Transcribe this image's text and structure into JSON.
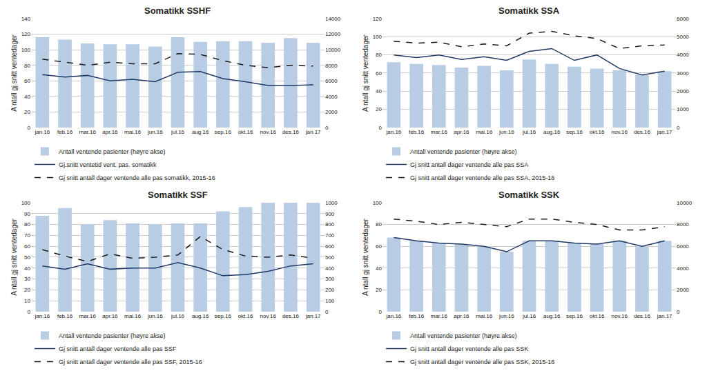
{
  "chart_data": [
    {
      "type": "bar",
      "title": "Somatikk SSHF",
      "categories": [
        "jan.16",
        "feb.16",
        "mar.16",
        "apr.16",
        "mai.16",
        "jun.16",
        "jul.16",
        "aug.16",
        "sep.16",
        "okt.16",
        "nov.16",
        "des.16",
        "jan.17"
      ],
      "ylabel": "A ntall gj snitt ventedager",
      "ylim": [
        0,
        140
      ],
      "yticks": [
        0,
        20,
        40,
        60,
        80,
        100,
        120,
        140
      ],
      "y2lim": [
        0,
        14000
      ],
      "y2ticks": [
        0,
        2000,
        4000,
        6000,
        8000,
        10000,
        12000,
        14000
      ],
      "grid": true,
      "legend": "below",
      "series": [
        {
          "name": "Antall ventende pasienter (høyre akse)",
          "type": "bar",
          "axis": "y2",
          "color": "#b8cce4",
          "values": [
            11600,
            11300,
            10800,
            10700,
            10700,
            10400,
            11600,
            11000,
            11100,
            11100,
            10900,
            11500,
            10900
          ]
        },
        {
          "name": "Gj.snitt ventetid vent. pas. somatikk",
          "type": "line",
          "color": "#1f3864",
          "line_style": "solid",
          "values": [
            68,
            65,
            67,
            60,
            62,
            59,
            71,
            72,
            63,
            59,
            54,
            54,
            55
          ]
        },
        {
          "name": "Gj snitt antall dager ventende alle pas somatikk, 2015-16",
          "type": "line",
          "color": "#1a1a1a",
          "line_style": "dashed",
          "values": [
            88,
            84,
            80,
            84,
            82,
            82,
            95,
            94,
            86,
            80,
            77,
            80,
            79
          ]
        }
      ]
    },
    {
      "type": "bar",
      "title": "Somatikk SSA",
      "categories": [
        "jan.16",
        "feb.16",
        "mar.16",
        "apr.16",
        "mai.16",
        "jun.16",
        "jul.16",
        "aug.16",
        "sep.16",
        "okt.16",
        "nov.16",
        "des.16",
        "jan.17"
      ],
      "ylabel": "A ntall gj snitt ventedager",
      "ylim": [
        0,
        120
      ],
      "yticks": [
        0,
        20,
        40,
        60,
        80,
        100,
        120
      ],
      "y2lim": [
        0,
        6000
      ],
      "y2ticks": [
        0,
        1000,
        2000,
        3000,
        4000,
        5000,
        6000
      ],
      "grid": true,
      "legend": "below",
      "series": [
        {
          "name": "Antall ventende pasienter (høyre akse)",
          "type": "bar",
          "axis": "y2",
          "color": "#b8cce4",
          "values": [
            3600,
            3500,
            3450,
            3300,
            3400,
            3150,
            3750,
            3500,
            3350,
            3250,
            3150,
            2900,
            3100
          ]
        },
        {
          "name": "Gj snitt antall dager ventende alle pas SSA",
          "type": "line",
          "color": "#1f3864",
          "line_style": "solid",
          "values": [
            80,
            77,
            80,
            75,
            78,
            74,
            84,
            87,
            74,
            80,
            65,
            58,
            62
          ]
        },
        {
          "name": "Gj snitt antall dager ventende alle pas SSA, 2015-16",
          "type": "line",
          "color": "#1a1a1a",
          "line_style": "dashed",
          "values": [
            95,
            93,
            94,
            89,
            92,
            90,
            104,
            106,
            101,
            98,
            87,
            90,
            91
          ]
        }
      ]
    },
    {
      "type": "bar",
      "title": "Somatikk SSF",
      "categories": [
        "jan.16",
        "feb.16",
        "mar.16",
        "apr.16",
        "mai.16",
        "jun.16",
        "jul.16",
        "aug.16",
        "sep.16",
        "okt.16",
        "nov.16",
        "des.16",
        "jan.17"
      ],
      "ylabel": "A ntall gj snitt ventedager",
      "ylim": [
        0,
        100
      ],
      "yticks": [
        0,
        10,
        20,
        30,
        40,
        50,
        60,
        70,
        80,
        90,
        100
      ],
      "y2lim": [
        0,
        1000
      ],
      "y2ticks": [
        0,
        100,
        200,
        300,
        400,
        500,
        600,
        700,
        800,
        900,
        1000
      ],
      "grid": true,
      "legend": "below",
      "series": [
        {
          "name": "Antall ventende pasienter (høyre akse)",
          "type": "bar",
          "axis": "y2",
          "color": "#b8cce4",
          "values": [
            880,
            950,
            800,
            840,
            810,
            800,
            810,
            810,
            920,
            960,
            1000,
            1000,
            1000
          ]
        },
        {
          "name": "Gj snitt antall dager ventende alle pas SSF",
          "type": "line",
          "color": "#1f3864",
          "line_style": "solid",
          "values": [
            42,
            39,
            44,
            39,
            40,
            40,
            45,
            40,
            33,
            34,
            37,
            42,
            44
          ]
        },
        {
          "name": "Gj snitt antall dager ventende alle pas SSF, 2015-16",
          "type": "line",
          "color": "#1a1a1a",
          "line_style": "dashed",
          "values": [
            57,
            51,
            46,
            53,
            49,
            50,
            52,
            69,
            57,
            51,
            50,
            52,
            49
          ]
        }
      ]
    },
    {
      "type": "bar",
      "title": "Somatikk SSK",
      "categories": [
        "jan.16",
        "feb.16",
        "mar.16",
        "apr.16",
        "mai.16",
        "jun.16",
        "jul.16",
        "aug.16",
        "sep.16",
        "okt.16",
        "nov.16",
        "des.16",
        "jan.17"
      ],
      "ylabel": "A ntall gj snitt ventedager",
      "ylim": [
        0,
        100
      ],
      "yticks": [
        0,
        20,
        40,
        60,
        80,
        100
      ],
      "y2lim": [
        0,
        10000
      ],
      "y2ticks": [
        0,
        2000,
        4000,
        6000,
        8000,
        10000
      ],
      "grid": true,
      "legend": "below",
      "series": [
        {
          "name": "Antall ventende pasienter (høyre akse)",
          "type": "bar",
          "axis": "y2",
          "color": "#b8cce4",
          "values": [
            6800,
            6500,
            6300,
            6200,
            6000,
            5500,
            6500,
            6500,
            6300,
            6200,
            6500,
            6000,
            6500
          ]
        },
        {
          "name": "Gj snitt antall dager ventende alle pas SSK",
          "type": "line",
          "color": "#1f3864",
          "line_style": "solid",
          "values": [
            68,
            65,
            63,
            62,
            60,
            55,
            65,
            65,
            63,
            62,
            65,
            60,
            65
          ]
        },
        {
          "name": "Gj snitt antall dager ventende alle pas SSK, 2015-16",
          "type": "line",
          "color": "#1a1a1a",
          "line_style": "dashed",
          "values": [
            85,
            83,
            80,
            82,
            80,
            78,
            85,
            85,
            82,
            80,
            75,
            75,
            78
          ]
        }
      ]
    }
  ]
}
